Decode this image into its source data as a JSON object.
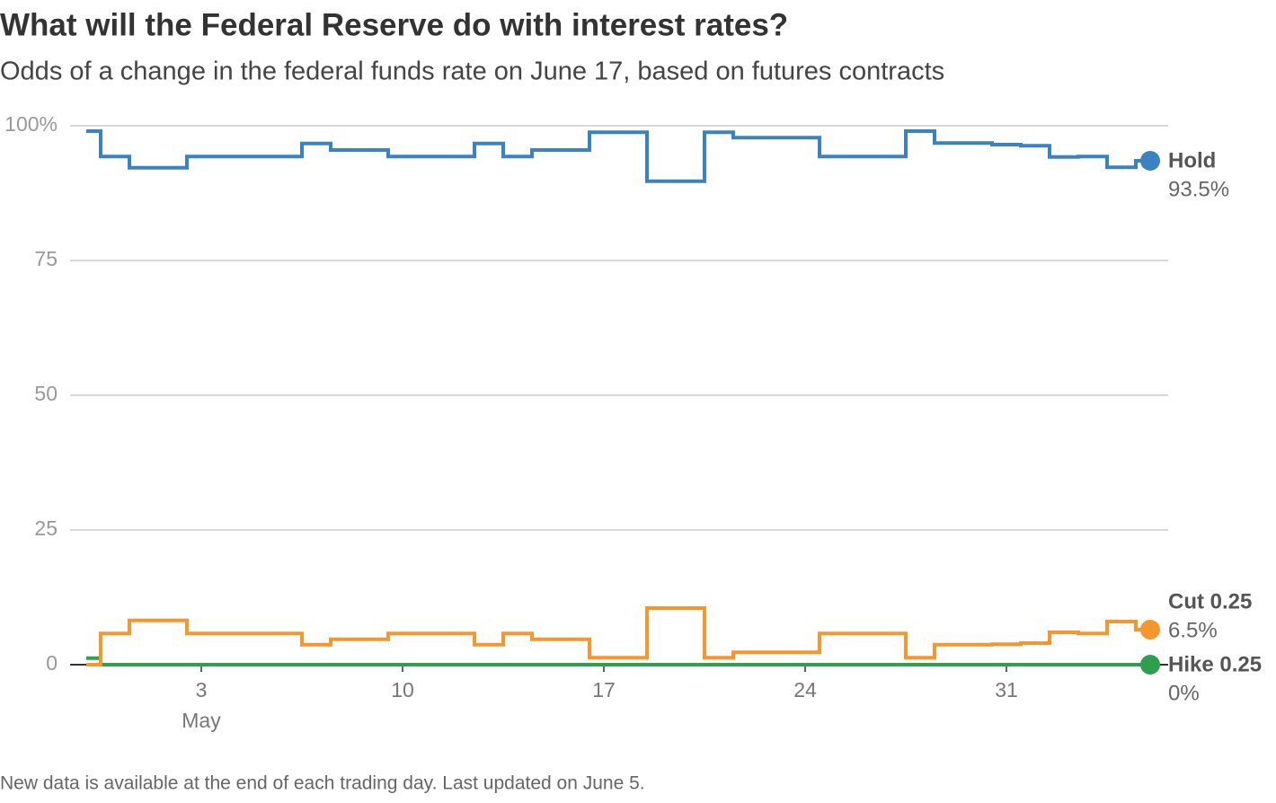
{
  "chart_data": {
    "type": "step",
    "title": "What will the Federal Reserve do with interest rates?",
    "subtitle": "Odds of a change in the federal funds rate on June 17, based on futures contracts",
    "footnote": "New data is available at the end of each trading day. Last updated on June 5.",
    "x": [
      -1,
      0,
      1,
      2,
      3,
      4,
      5,
      6,
      7,
      8,
      9,
      10,
      11,
      12,
      13,
      14,
      15,
      16,
      17,
      18,
      19,
      20,
      21,
      22,
      23,
      24,
      25,
      26,
      27,
      28,
      29,
      30,
      31,
      32,
      33,
      34,
      35,
      36
    ],
    "xlim": [
      -2,
      38
    ],
    "xticks": [
      3,
      10,
      17,
      24,
      31
    ],
    "x_month_label": "May",
    "ylim": [
      0,
      100
    ],
    "yticks": [
      0,
      25,
      50,
      75,
      {
        "value": 100,
        "label": "100%"
      }
    ],
    "grid": true,
    "series": [
      {
        "name": "Hold",
        "color": "#3a83c1",
        "values": [
          99,
          94.3,
          92.2,
          92.2,
          94.3,
          94.3,
          94.3,
          94.3,
          96.7,
          95.5,
          95.5,
          94.3,
          94.3,
          94.3,
          96.7,
          94.3,
          95.5,
          95.5,
          98.8,
          98.8,
          89.7,
          89.7,
          98.8,
          97.8,
          97.8,
          97.8,
          94.3,
          94.3,
          94.3,
          99,
          96.8,
          96.8,
          96.5,
          96.3,
          94.2,
          94.3,
          92.3,
          93.5
        ],
        "value_labels": [
          null,
          null,
          null,
          null,
          null,
          null,
          null,
          null,
          null,
          null,
          null,
          null,
          null,
          null,
          null,
          null,
          null,
          null,
          null,
          null,
          null,
          null,
          null,
          null,
          null,
          null,
          null,
          null,
          null,
          null,
          null,
          null,
          null,
          null,
          null,
          null,
          null,
          "93.5%"
        ]
      },
      {
        "name": "Cut 0.25",
        "color": "#f5962f",
        "values": [
          0,
          5.8,
          8.2,
          8.2,
          5.8,
          5.8,
          5.8,
          5.8,
          3.7,
          4.7,
          4.7,
          5.8,
          5.8,
          5.8,
          3.7,
          5.8,
          4.7,
          4.7,
          1.3,
          1.3,
          10.5,
          10.5,
          1.3,
          2.3,
          2.3,
          2.3,
          5.8,
          5.8,
          5.8,
          1.3,
          3.7,
          3.7,
          3.8,
          4,
          6,
          5.8,
          8,
          6.5
        ],
        "value_labels": [
          null,
          null,
          null,
          null,
          null,
          null,
          null,
          null,
          null,
          null,
          null,
          null,
          null,
          null,
          null,
          null,
          null,
          null,
          null,
          null,
          null,
          null,
          null,
          null,
          null,
          null,
          null,
          null,
          null,
          null,
          null,
          null,
          null,
          null,
          null,
          null,
          null,
          "6.5%"
        ]
      },
      {
        "name": "Hike 0.25",
        "color": "#2e9e4f",
        "values": [
          1.2,
          0,
          0,
          0,
          0,
          0,
          0,
          0,
          0,
          0,
          0,
          0,
          0,
          0,
          0,
          0,
          0,
          0,
          0,
          0,
          0,
          0,
          0,
          0,
          0,
          0,
          0,
          0,
          0,
          0,
          0,
          0,
          0,
          0,
          0,
          0,
          0,
          0
        ],
        "value_labels": [
          null,
          null,
          null,
          null,
          null,
          null,
          null,
          null,
          null,
          null,
          null,
          null,
          null,
          null,
          null,
          null,
          null,
          null,
          null,
          null,
          null,
          null,
          null,
          null,
          null,
          null,
          null,
          null,
          null,
          null,
          null,
          null,
          null,
          null,
          null,
          null,
          null,
          "0%"
        ]
      }
    ]
  }
}
